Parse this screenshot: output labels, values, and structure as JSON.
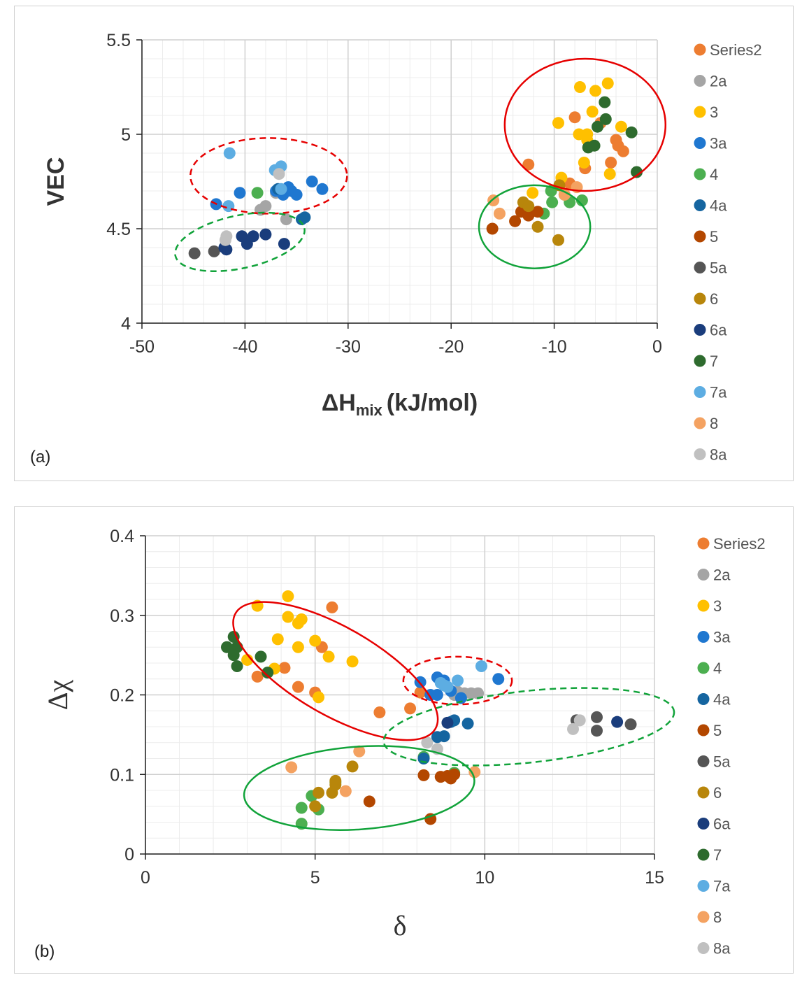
{
  "chart_data": [
    {
      "id": "a",
      "type": "scatter",
      "panel_label": "(a)",
      "title": "",
      "xlabel": {
        "main": "ΔH",
        "sub": "mix",
        "unit": "(kJ/mol)"
      },
      "ylabel": "VEC",
      "xlim": [
        -50,
        0
      ],
      "ylim": [
        4,
        5.5
      ],
      "xticks": [
        "-50",
        "-40",
        "-30",
        "-20",
        "-10",
        "0"
      ],
      "xtick_values": [
        -50,
        -40,
        -30,
        -20,
        -10,
        0
      ],
      "yticks": [
        "4",
        "4.5",
        "5",
        "5.5"
      ],
      "ytick_values": [
        4,
        4.5,
        5,
        5.5
      ],
      "grid": true,
      "legend_position": "right",
      "series": [
        {
          "name": "Series2",
          "color": "#ED7D31",
          "points": [
            [
              -12.5,
              4.84
            ],
            [
              -8,
              5.09
            ],
            [
              -7,
              4.82
            ],
            [
              -8.5,
              4.74
            ],
            [
              -4,
              4.97
            ],
            [
              -3.8,
              4.94
            ],
            [
              -3.3,
              4.91
            ],
            [
              -4.5,
              4.85
            ],
            [
              -5.5,
              5.06
            ]
          ]
        },
        {
          "name": "2a",
          "color": "#A5A5A5",
          "points": [
            [
              -38.5,
              4.6
            ],
            [
              -38,
              4.62
            ],
            [
              -37,
              4.69
            ],
            [
              -36,
              4.55
            ]
          ]
        },
        {
          "name": "3",
          "color": "#FFC000",
          "points": [
            [
              -7.5,
              5.25
            ],
            [
              -6,
              5.23
            ],
            [
              -4.8,
              5.27
            ],
            [
              -6.3,
              5.12
            ],
            [
              -9.6,
              5.06
            ],
            [
              -7.6,
              5.0
            ],
            [
              -6.8,
              5.0
            ],
            [
              -6.8,
              4.97
            ],
            [
              -3.5,
              5.04
            ],
            [
              -4.6,
              4.79
            ],
            [
              -7.1,
              4.85
            ],
            [
              -9.3,
              4.77
            ],
            [
              -12.1,
              4.69
            ]
          ]
        },
        {
          "name": "3a",
          "color": "#1F77D0",
          "points": [
            [
              -42.8,
              4.63
            ],
            [
              -40.5,
              4.69
            ],
            [
              -37,
              4.7
            ],
            [
              -36.3,
              4.68
            ],
            [
              -35.5,
              4.7
            ],
            [
              -35.8,
              4.72
            ],
            [
              -35,
              4.68
            ],
            [
              -33.5,
              4.75
            ],
            [
              -32.5,
              4.71
            ]
          ]
        },
        {
          "name": "4",
          "color": "#4CAF50",
          "points": [
            [
              -10.3,
              4.7
            ],
            [
              -10.2,
              4.64
            ],
            [
              -9,
              4.68
            ],
            [
              -8.5,
              4.64
            ],
            [
              -7.3,
              4.65
            ],
            [
              -11,
              4.58
            ],
            [
              -38.8,
              4.69
            ]
          ]
        },
        {
          "name": "4a",
          "color": "#1565A0",
          "points": [
            [
              -34.5,
              4.55
            ],
            [
              -34.2,
              4.56
            ],
            [
              -36.8,
              4.71
            ]
          ]
        },
        {
          "name": "5",
          "color": "#B34700",
          "points": [
            [
              -16,
              4.5
            ],
            [
              -13.8,
              4.54
            ],
            [
              -13.2,
              4.59
            ],
            [
              -12.8,
              4.6
            ],
            [
              -12.5,
              4.57
            ],
            [
              -11.6,
              4.59
            ]
          ]
        },
        {
          "name": "5a",
          "color": "#555555",
          "points": [
            [
              -44.9,
              4.37
            ],
            [
              -43,
              4.38
            ]
          ]
        },
        {
          "name": "6",
          "color": "#B8860B",
          "points": [
            [
              -13,
              4.64
            ],
            [
              -12.5,
              4.62
            ],
            [
              -11.6,
              4.51
            ],
            [
              -9.6,
              4.44
            ],
            [
              -9.5,
              4.73
            ]
          ]
        },
        {
          "name": "6a",
          "color": "#1A3D7C",
          "points": [
            [
              -42,
              4.4
            ],
            [
              -40.3,
              4.46
            ],
            [
              -39.8,
              4.42
            ],
            [
              -39.2,
              4.46
            ],
            [
              -38,
              4.47
            ],
            [
              -36.2,
              4.42
            ],
            [
              -41.8,
              4.39
            ]
          ]
        },
        {
          "name": "7",
          "color": "#2E6B2E",
          "points": [
            [
              -5.1,
              5.17
            ],
            [
              -5,
              5.08
            ],
            [
              -5.8,
              5.04
            ],
            [
              -6.1,
              4.94
            ],
            [
              -6.7,
              4.93
            ],
            [
              -2.5,
              5.01
            ],
            [
              -2,
              4.8
            ]
          ]
        },
        {
          "name": "7a",
          "color": "#5DADE2",
          "points": [
            [
              -41.5,
              4.9
            ],
            [
              -36.5,
              4.83
            ],
            [
              -37.1,
              4.81
            ],
            [
              -36.5,
              4.71
            ],
            [
              -41.6,
              4.62
            ]
          ]
        },
        {
          "name": "8",
          "color": "#F4A261",
          "points": [
            [
              -15.9,
              4.65
            ],
            [
              -15.3,
              4.58
            ],
            [
              -7.8,
              4.72
            ],
            [
              -9,
              4.68
            ]
          ]
        },
        {
          "name": "8a",
          "color": "#C0C0C0",
          "points": [
            [
              -41.8,
              4.46
            ],
            [
              -41.9,
              4.44
            ],
            [
              -36.7,
              4.79
            ]
          ]
        }
      ],
      "annotations": [
        {
          "shape": "ellipse",
          "style": "solid",
          "color": "#E60000",
          "cx": -7,
          "cy": 5.05,
          "rx": 7.8,
          "ry": 0.35,
          "angle_deg": 0
        },
        {
          "shape": "ellipse",
          "style": "solid",
          "color": "#11A33A",
          "cx": -11.9,
          "cy": 4.51,
          "rx": 5.4,
          "ry": 0.22,
          "angle_deg": 0
        },
        {
          "shape": "ellipse",
          "style": "dashed",
          "color": "#E60000",
          "cx": -37.7,
          "cy": 4.78,
          "rx": 7.6,
          "ry": 0.2,
          "angle_deg": 0
        },
        {
          "shape": "ellipse",
          "style": "dashed",
          "color": "#11A33A",
          "cx": -40.5,
          "cy": 4.43,
          "rx": 6.4,
          "ry": 0.14,
          "angle_deg": -12
        }
      ]
    },
    {
      "id": "b",
      "type": "scatter",
      "panel_label": "(b)",
      "title": "",
      "xlabel": "δ",
      "ylabel": "Δχ",
      "xlim": [
        0,
        15
      ],
      "ylim": [
        0,
        0.4
      ],
      "xticks": [
        "0",
        "5",
        "10",
        "15"
      ],
      "xtick_values": [
        0,
        5,
        10,
        15
      ],
      "yticks": [
        "0",
        "0.1",
        "0.2",
        "0.3",
        "0.4"
      ],
      "ytick_values": [
        0,
        0.1,
        0.2,
        0.3,
        0.4
      ],
      "grid": true,
      "legend_position": "right",
      "series": [
        {
          "name": "Series2",
          "color": "#ED7D31",
          "points": [
            [
              5.5,
              0.31
            ],
            [
              3.3,
              0.223
            ],
            [
              4.1,
              0.234
            ],
            [
              4.5,
              0.21
            ],
            [
              5,
              0.203
            ],
            [
              5.2,
              0.26
            ],
            [
              6.9,
              0.178
            ],
            [
              7.8,
              0.183
            ],
            [
              8.1,
              0.203
            ]
          ]
        },
        {
          "name": "2a",
          "color": "#A5A5A5",
          "points": [
            [
              9.1,
              0.2
            ],
            [
              9.2,
              0.204
            ],
            [
              9.4,
              0.202
            ],
            [
              9.6,
              0.202
            ],
            [
              9.8,
              0.202
            ]
          ]
        },
        {
          "name": "3",
          "color": "#FFC000",
          "points": [
            [
              3.3,
              0.312
            ],
            [
              4.2,
              0.324
            ],
            [
              4.2,
              0.298
            ],
            [
              4.5,
              0.29
            ],
            [
              4.6,
              0.295
            ],
            [
              3.9,
              0.27
            ],
            [
              5,
              0.268
            ],
            [
              4.5,
              0.26
            ],
            [
              5.4,
              0.248
            ],
            [
              6.1,
              0.242
            ],
            [
              3,
              0.244
            ],
            [
              3.8,
              0.233
            ],
            [
              5.1,
              0.197
            ]
          ]
        },
        {
          "name": "3a",
          "color": "#1F77D0",
          "points": [
            [
              8.1,
              0.216
            ],
            [
              8.6,
              0.222
            ],
            [
              8.8,
              0.218
            ],
            [
              8.9,
              0.21
            ],
            [
              9,
              0.205
            ],
            [
              9.3,
              0.196
            ],
            [
              8.4,
              0.2
            ],
            [
              8.6,
              0.2
            ],
            [
              10.4,
              0.22
            ]
          ]
        },
        {
          "name": "4",
          "color": "#4CAF50",
          "points": [
            [
              4.6,
              0.058
            ],
            [
              4.6,
              0.038
            ],
            [
              4.9,
              0.073
            ],
            [
              5.1,
              0.056
            ],
            [
              5.6,
              0.09
            ],
            [
              9.1,
              0.102
            ],
            [
              8.2,
              0.122
            ]
          ]
        },
        {
          "name": "4a",
          "color": "#1565A0",
          "points": [
            [
              8.6,
              0.147
            ],
            [
              8.8,
              0.148
            ],
            [
              9,
              0.166
            ],
            [
              9.1,
              0.168
            ],
            [
              9.5,
              0.164
            ],
            [
              8.2,
              0.12
            ]
          ]
        },
        {
          "name": "5",
          "color": "#B34700",
          "points": [
            [
              8.2,
              0.099
            ],
            [
              8.7,
              0.097
            ],
            [
              8.9,
              0.098
            ],
            [
              9,
              0.095
            ],
            [
              9.1,
              0.1
            ],
            [
              6.6,
              0.066
            ],
            [
              8.4,
              0.044
            ]
          ]
        },
        {
          "name": "5a",
          "color": "#555555",
          "points": [
            [
              12.7,
              0.168
            ],
            [
              13.3,
              0.172
            ],
            [
              13.3,
              0.155
            ],
            [
              14.3,
              0.163
            ]
          ]
        },
        {
          "name": "6",
          "color": "#B8860B",
          "points": [
            [
              5.1,
              0.077
            ],
            [
              5.6,
              0.092
            ],
            [
              5.6,
              0.087
            ],
            [
              5.5,
              0.077
            ],
            [
              6.1,
              0.11
            ],
            [
              5,
              0.06
            ]
          ]
        },
        {
          "name": "6a",
          "color": "#1A3D7C",
          "points": [
            [
              8.9,
              0.165
            ],
            [
              13.9,
              0.166
            ]
          ]
        },
        {
          "name": "7",
          "color": "#2E6B2E",
          "points": [
            [
              2.4,
              0.26
            ],
            [
              2.6,
              0.273
            ],
            [
              2.7,
              0.26
            ],
            [
              2.6,
              0.25
            ],
            [
              2.7,
              0.236
            ],
            [
              3.4,
              0.248
            ],
            [
              3.6,
              0.228
            ]
          ]
        },
        {
          "name": "7a",
          "color": "#5DADE2",
          "points": [
            [
              8.7,
              0.215
            ],
            [
              8.9,
              0.21
            ],
            [
              9.2,
              0.218
            ],
            [
              9.9,
              0.236
            ],
            [
              8.8,
              0.212
            ]
          ]
        },
        {
          "name": "8",
          "color": "#F4A261",
          "points": [
            [
              4.3,
              0.109
            ],
            [
              6.3,
              0.129
            ],
            [
              5.9,
              0.079
            ],
            [
              9.7,
              0.103
            ]
          ]
        },
        {
          "name": "8a",
          "color": "#C0C0C0",
          "points": [
            [
              8.3,
              0.14
            ],
            [
              8.6,
              0.132
            ],
            [
              12.6,
              0.157
            ],
            [
              12.8,
              0.168
            ]
          ]
        }
      ],
      "annotations": [
        {
          "shape": "ellipse",
          "style": "solid",
          "color": "#E60000",
          "cx": 5.6,
          "cy": 0.23,
          "rx": 3.4,
          "ry": 0.055,
          "angle_deg": 30
        },
        {
          "shape": "ellipse",
          "style": "solid",
          "color": "#11A33A",
          "cx": 6.3,
          "cy": 0.083,
          "rx": 3.4,
          "ry": 0.052,
          "angle_deg": -4
        },
        {
          "shape": "ellipse",
          "style": "dashed",
          "color": "#E60000",
          "cx": 9.2,
          "cy": 0.218,
          "rx": 1.6,
          "ry": 0.03,
          "angle_deg": 0
        },
        {
          "shape": "ellipse",
          "style": "dashed",
          "color": "#11A33A",
          "cx": 11.3,
          "cy": 0.16,
          "rx": 4.3,
          "ry": 0.045,
          "angle_deg": -6
        }
      ]
    }
  ]
}
